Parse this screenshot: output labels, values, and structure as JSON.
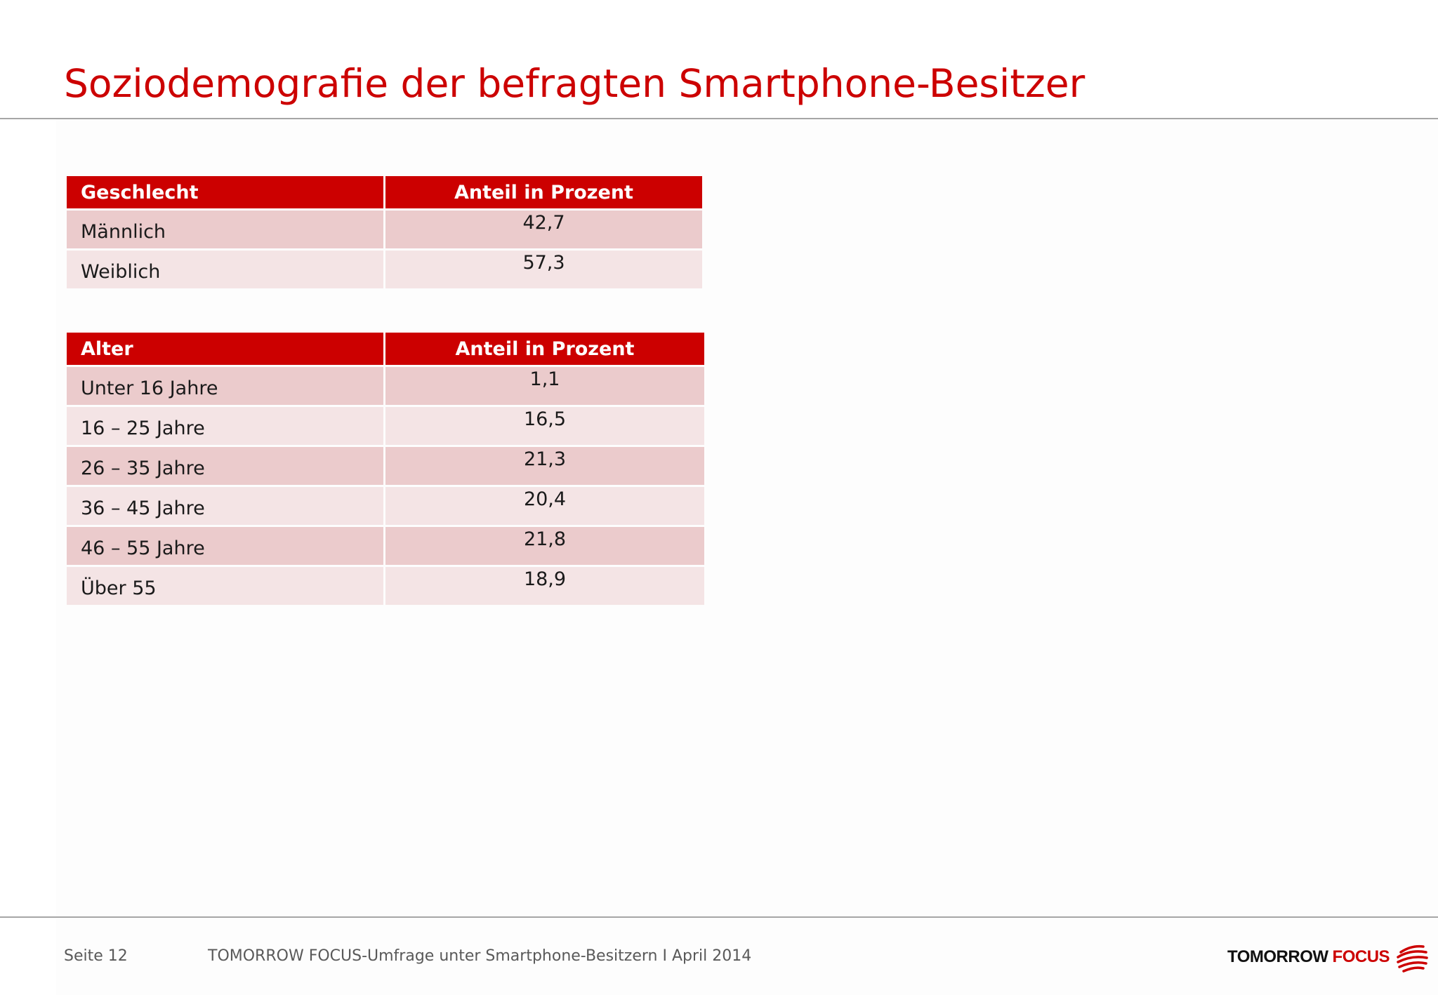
{
  "title": "Soziodemografie der befragten Smartphone-Besitzer",
  "colors": {
    "accent": "#cc0000",
    "row_dark": "#ebcbcc",
    "row_light": "#f4e4e5",
    "rule": "#a6a6a6",
    "footer_text": "#595959"
  },
  "gender_table": {
    "headers": [
      "Geschlecht",
      "Anteil in Prozent"
    ],
    "rows": [
      {
        "label": "Männlich",
        "value": "42,7"
      },
      {
        "label": "Weiblich",
        "value": "57,3"
      }
    ]
  },
  "age_table": {
    "headers": [
      "Alter",
      "Anteil in Prozent"
    ],
    "rows": [
      {
        "label": "Unter 16 Jahre",
        "value": "1,1"
      },
      {
        "label": "16 – 25 Jahre",
        "value": "16,5"
      },
      {
        "label": "26 – 35 Jahre",
        "value": "21,3"
      },
      {
        "label": "36 – 45 Jahre",
        "value": "20,4"
      },
      {
        "label": "46 – 55 Jahre",
        "value": "21,8"
      },
      {
        "label": "Über 55",
        "value": "18,9"
      }
    ]
  },
  "footer": {
    "page": "Seite 12",
    "source": "TOMORROW FOCUS-Umfrage unter Smartphone-Besitzern I April 2014"
  },
  "logo": {
    "part1": "TOMORROW",
    "part2": "FOCUS",
    "icon": "tomorrow-focus-swirl-icon"
  }
}
